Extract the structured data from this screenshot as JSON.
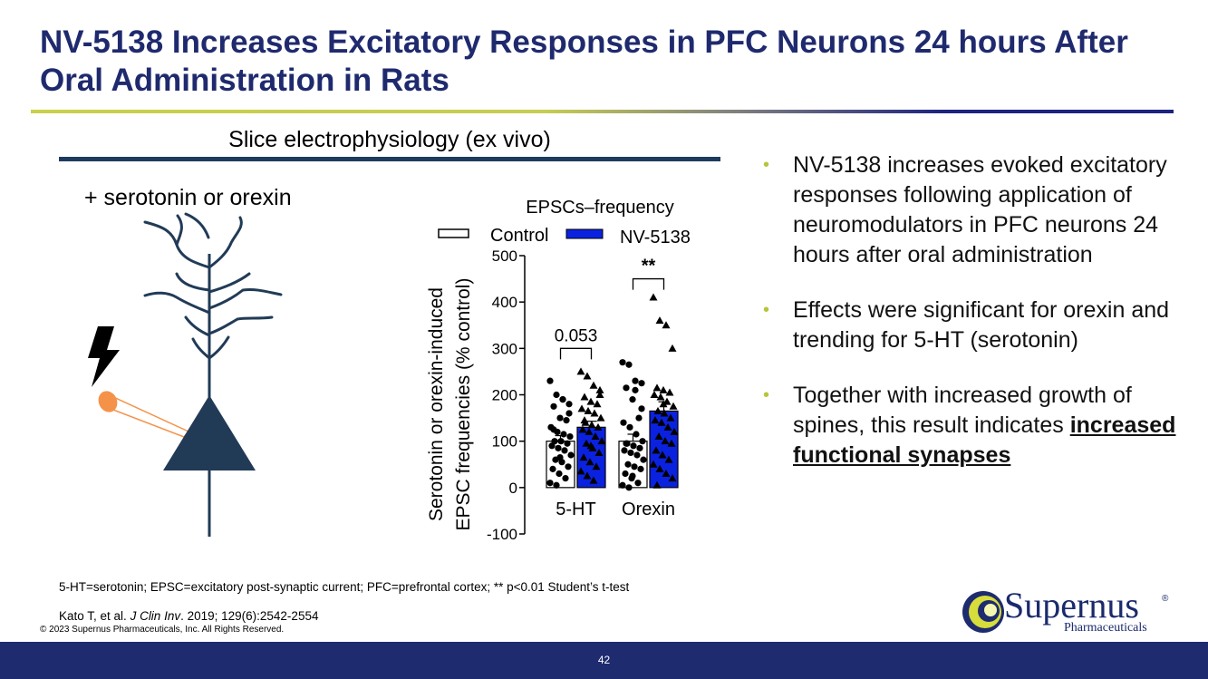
{
  "slide": {
    "title": "NV-5138 Increases Excitatory Responses in PFC Neurons 24 hours After Oral Administration in Rats",
    "section_header": "Slice electrophysiology (ex vivo)",
    "stimulus_label": "+ serotonin or orexin",
    "bullets": [
      {
        "pre": "NV-5138 increases evoked excitatory responses following application of neuromodulators in PFC neurons 24 hours after oral administration",
        "emph": ""
      },
      {
        "pre": "Effects were significant for orexin and trending for 5-HT (serotonin)",
        "emph": ""
      },
      {
        "pre": "Together with increased growth of spines, this result indicates ",
        "emph": "increased functional synapses"
      }
    ],
    "footnote": "5-HT=serotonin; EPSC=excitatory post-synaptic current; PFC=prefrontal cortex; ** p<0.01 Student’s t-test",
    "citation": {
      "authors": "Kato T, et al. ",
      "journal": "J Clin Inv",
      "details": ". 2019; 129(6):2542-2554"
    },
    "copyright": "© 2023 Supernus Pharmaceuticals, Inc. All Rights Reserved.",
    "page_number": "42",
    "logo": {
      "name": "Supernus",
      "reg": "®",
      "subtitle": "Pharmaceuticals"
    },
    "colors": {
      "title": "#1f2a6e",
      "footer": "#1e2b6e",
      "nv_bar": "#0a22e0",
      "bullet": "#b8c43c",
      "neuron": "#213b57",
      "electrode": "#f4924a"
    }
  },
  "chart_data": {
    "type": "bar",
    "title": "EPSCs–frequency",
    "ylabel_lines": [
      "Serotonin or orexin-induced",
      "EPSC frequencies (% control)"
    ],
    "xlabel": "",
    "categories": [
      "5-HT",
      "Orexin"
    ],
    "ylim": [
      -100,
      500
    ],
    "yticks": [
      -100,
      0,
      100,
      200,
      300,
      400,
      500
    ],
    "series": [
      {
        "name": "Control",
        "values": [
          100,
          100
        ],
        "errors": [
          12,
          15
        ],
        "points": [
          [
            230,
            200,
            190,
            180,
            175,
            150,
            145,
            130,
            120,
            115,
            110,
            100,
            100,
            95,
            90,
            85,
            80,
            70,
            60,
            55,
            45,
            40,
            30,
            20,
            10,
            5,
            190,
            160,
            125,
            65
          ],
          [
            270,
            265,
            230,
            225,
            215,
            190,
            150,
            140,
            130,
            115,
            100,
            95,
            90,
            85,
            80,
            75,
            70,
            60,
            50,
            45,
            40,
            30,
            20,
            10,
            5,
            0,
            210,
            170,
            95,
            25
          ]
        ]
      },
      {
        "name": "NV-5138",
        "values": [
          130,
          165
        ],
        "errors": [
          13,
          20
        ],
        "points": [
          [
            250,
            240,
            220,
            210,
            195,
            185,
            180,
            170,
            165,
            160,
            150,
            140,
            135,
            130,
            125,
            120,
            110,
            100,
            95,
            85,
            75,
            65,
            55,
            45,
            35,
            25,
            15,
            200,
            145,
            90
          ],
          [
            410,
            360,
            350,
            300,
            215,
            210,
            205,
            200,
            195,
            185,
            175,
            165,
            160,
            150,
            145,
            140,
            130,
            120,
            110,
            100,
            95,
            80,
            70,
            60,
            50,
            40,
            30,
            20,
            5,
            180
          ]
        ]
      }
    ],
    "annotations": [
      {
        "category": "5-HT",
        "text": "0.053",
        "bracket_y": 300
      },
      {
        "category": "Orexin",
        "text": "**",
        "bracket_y": 450
      }
    ],
    "legend_placement": "top"
  }
}
